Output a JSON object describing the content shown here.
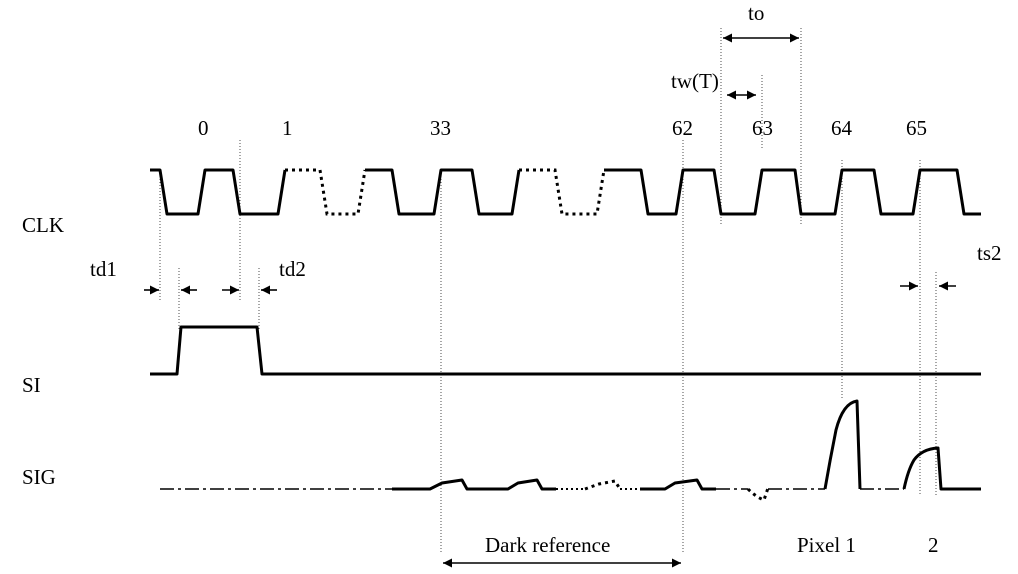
{
  "clock_labels": [
    "0",
    "1",
    "33",
    "62",
    "63",
    "64",
    "65"
  ],
  "signals": {
    "clk": "CLK",
    "si": "SI",
    "sig": "SIG"
  },
  "timing": {
    "to": "to",
    "tw": "tw(T)",
    "td1": "td1",
    "td2": "td2",
    "ts2": "ts2"
  },
  "regions": {
    "dark_reference": "Dark reference",
    "pixel1": "Pixel 1",
    "pixel2": "2"
  }
}
